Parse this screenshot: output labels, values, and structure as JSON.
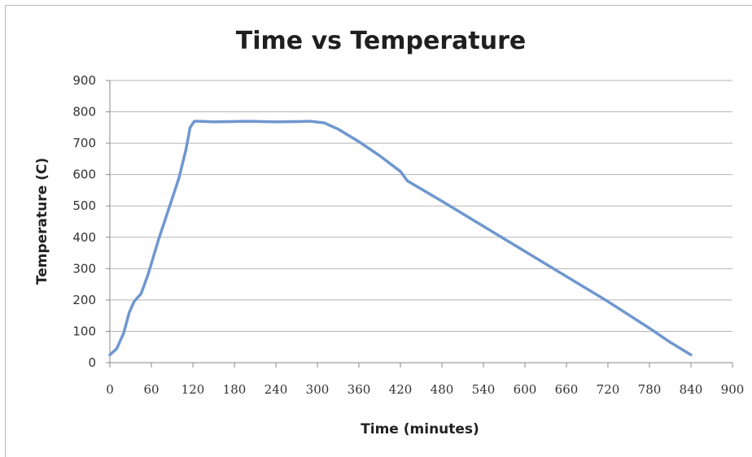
{
  "chart_data": {
    "type": "line",
    "title": "Time vs Temperature",
    "xlabel": "Time (minutes)",
    "ylabel": "Temperature (C)",
    "xlim": [
      0,
      900
    ],
    "ylim": [
      0,
      900
    ],
    "xticks": [
      "0",
      "60",
      "120",
      "180",
      "240",
      "300",
      "360",
      "420",
      "480",
      "540",
      "600",
      "660",
      "720",
      "780",
      "840",
      "900"
    ],
    "yticks": [
      "0",
      "100",
      "200",
      "300",
      "400",
      "500",
      "600",
      "700",
      "800",
      "900"
    ],
    "grid": "horizontal",
    "line_color": "#6f97cf",
    "series": [
      {
        "x": [
          0,
          10,
          20,
          28,
          35,
          45,
          55,
          70,
          85,
          100,
          110,
          116,
          122,
          130,
          150,
          200,
          240,
          270,
          290,
          310,
          330,
          360,
          390,
          420,
          430,
          480,
          540,
          600,
          660,
          720,
          780,
          810,
          840
        ],
        "y": [
          25,
          45,
          95,
          160,
          195,
          220,
          280,
          390,
          490,
          590,
          680,
          750,
          770,
          770,
          768,
          770,
          768,
          769,
          770,
          765,
          745,
          705,
          660,
          610,
          580,
          515,
          435,
          355,
          275,
          195,
          110,
          65,
          25
        ]
      }
    ]
  }
}
